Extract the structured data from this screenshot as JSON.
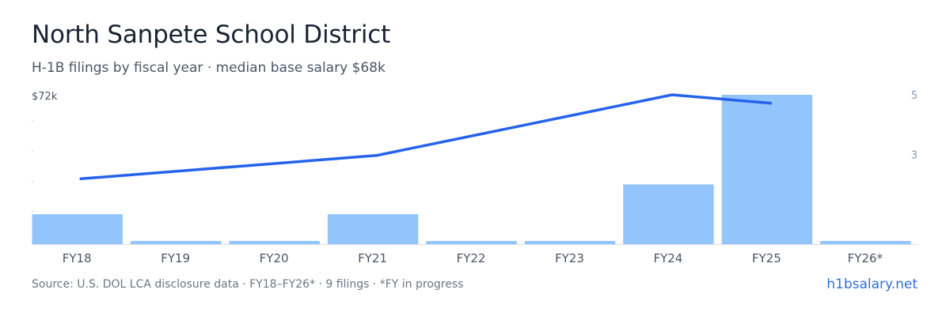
{
  "header": {
    "title": "North Sanpete School District",
    "subtitle": "H-1B filings by fiscal year · median base salary $68k"
  },
  "footer": {
    "source": "Source: U.S. DOL LCA disclosure data · FY18–FY26* · 9 filings · *FY in progress",
    "brand": "h1bsalary.net"
  },
  "colors": {
    "bar": "#93c5fd",
    "line": "#2563eb",
    "axis": "#d8dde4",
    "tick": "#4a5566",
    "right_tick": "#8a9ab8"
  },
  "chart_data": {
    "type": "bar",
    "categories": [
      "FY18",
      "FY19",
      "FY20",
      "FY21",
      "FY22",
      "FY23",
      "FY24",
      "FY25",
      "FY26*"
    ],
    "series": [
      {
        "type": "bar",
        "axis": "right",
        "values": [
          1,
          0,
          0,
          1,
          0,
          0,
          2,
          5,
          0
        ]
      },
      {
        "type": "line",
        "axis": "left",
        "values": [
          63000,
          null,
          null,
          65500,
          null,
          null,
          72000,
          71100,
          null
        ]
      }
    ],
    "left_axis": {
      "top_label": "$72k",
      "range": [
        56000,
        72000
      ]
    },
    "right_axis": {
      "ticks": [
        "5",
        "3"
      ],
      "range": [
        0,
        5
      ]
    },
    "grid": false,
    "legend": "none"
  }
}
